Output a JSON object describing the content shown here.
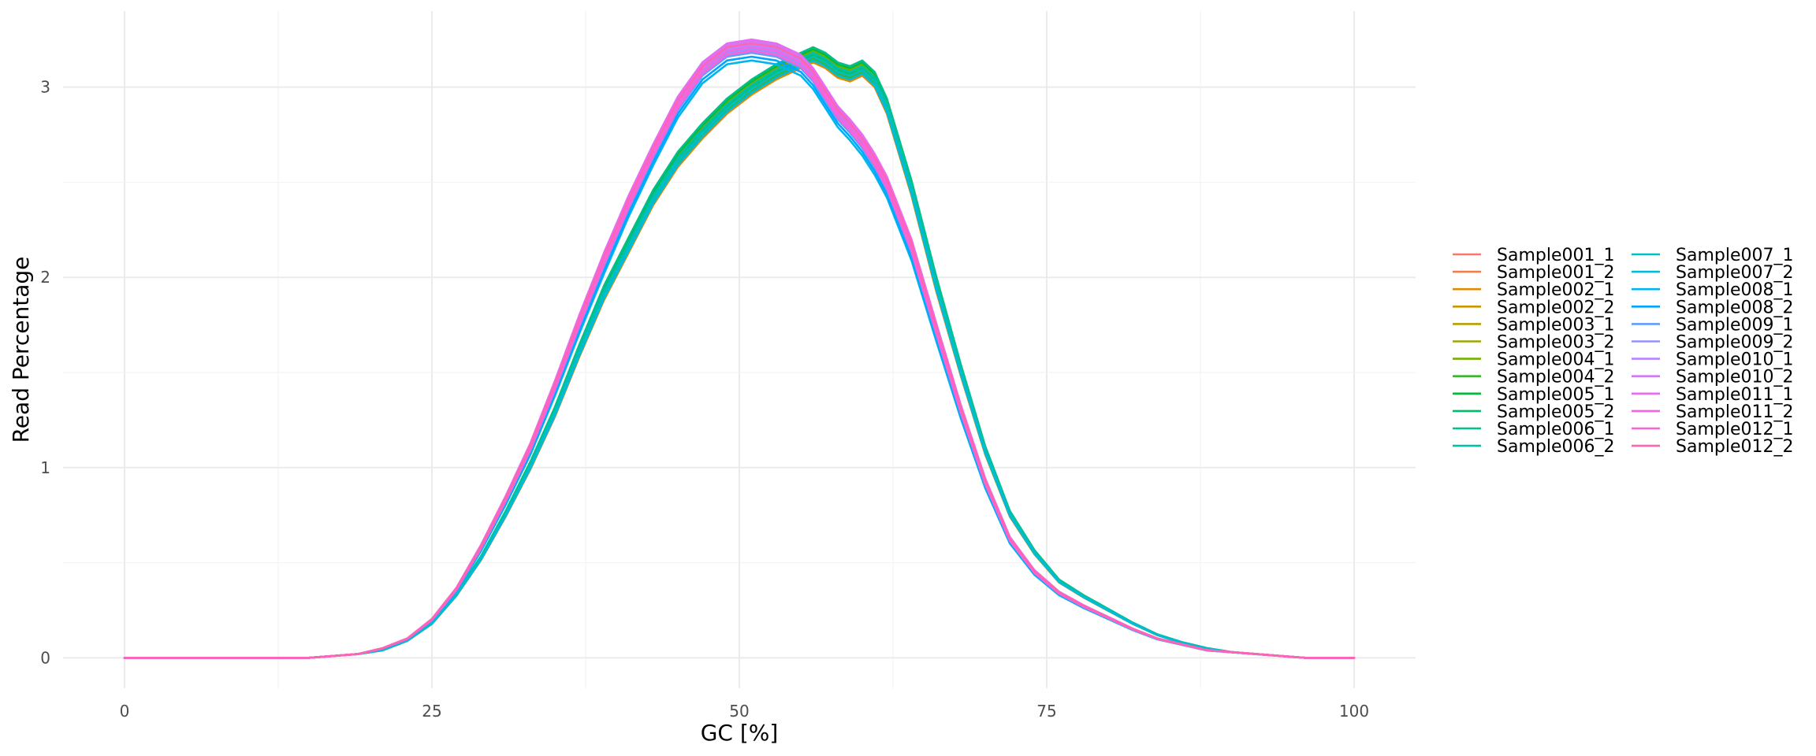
{
  "chart_data": {
    "type": "line",
    "title": "",
    "xlabel": "GC [%]",
    "ylabel": "Read Percentage",
    "xlim": [
      -5,
      105
    ],
    "ylim": [
      -0.16,
      3.4
    ],
    "xticks": [
      0,
      25,
      50,
      75,
      100
    ],
    "yticks": [
      0,
      1,
      2,
      3
    ],
    "grid": true,
    "legend_position": "right",
    "legend_columns": 2,
    "curve_groups": {
      "early": {
        "x": [
          0,
          5,
          10,
          15,
          17,
          19,
          21,
          23,
          25,
          27,
          29,
          31,
          33,
          35,
          37,
          39,
          41,
          43,
          45,
          47,
          49,
          51,
          53,
          55,
          56,
          57,
          58,
          59,
          60,
          61,
          62,
          64,
          66,
          68,
          70,
          72,
          74,
          76,
          78,
          80,
          82,
          84,
          86,
          88,
          90,
          92,
          94,
          96,
          98,
          100
        ],
        "y": [
          0.0,
          0.0,
          0.0,
          0.0,
          0.01,
          0.02,
          0.04,
          0.09,
          0.18,
          0.33,
          0.52,
          0.75,
          1.0,
          1.28,
          1.6,
          1.9,
          2.15,
          2.4,
          2.6,
          2.75,
          2.88,
          2.98,
          3.06,
          3.12,
          3.15,
          3.12,
          3.07,
          3.05,
          3.08,
          3.02,
          2.88,
          2.45,
          1.95,
          1.5,
          1.08,
          0.75,
          0.55,
          0.4,
          0.32,
          0.25,
          0.18,
          0.12,
          0.08,
          0.05,
          0.03,
          0.02,
          0.01,
          0.0,
          0.0,
          0.0
        ]
      },
      "late": {
        "x": [
          0,
          5,
          10,
          15,
          17,
          19,
          21,
          23,
          25,
          27,
          29,
          31,
          33,
          35,
          37,
          39,
          41,
          43,
          45,
          47,
          49,
          51,
          53,
          55,
          56,
          57,
          58,
          59,
          60,
          61,
          62,
          64,
          66,
          68,
          70,
          72,
          74,
          76,
          78,
          80,
          82,
          84,
          86,
          88,
          90,
          92,
          94,
          96,
          98,
          100
        ],
        "y": [
          0.0,
          0.0,
          0.0,
          0.0,
          0.01,
          0.02,
          0.05,
          0.1,
          0.2,
          0.36,
          0.58,
          0.83,
          1.1,
          1.42,
          1.76,
          2.08,
          2.38,
          2.65,
          2.9,
          3.08,
          3.18,
          3.2,
          3.18,
          3.12,
          3.05,
          2.95,
          2.85,
          2.78,
          2.7,
          2.6,
          2.48,
          2.15,
          1.72,
          1.3,
          0.92,
          0.62,
          0.45,
          0.34,
          0.27,
          0.21,
          0.15,
          0.1,
          0.07,
          0.04,
          0.03,
          0.02,
          0.01,
          0.0,
          0.0,
          0.0
        ]
      }
    },
    "series": [
      {
        "name": "Sample001_1",
        "color": "#F8766D",
        "group": "early",
        "dy": 0.0
      },
      {
        "name": "Sample001_2",
        "color": "#EF7F47",
        "group": "early",
        "dy": 0.02
      },
      {
        "name": "Sample002_1",
        "color": "#E18A00",
        "group": "early",
        "dy": -0.02
      },
      {
        "name": "Sample002_2",
        "color": "#CE9500",
        "group": "early",
        "dy": 0.01
      },
      {
        "name": "Sample003_1",
        "color": "#B79F00",
        "group": "early",
        "dy": 0.03
      },
      {
        "name": "Sample003_2",
        "color": "#9AA800",
        "group": "early",
        "dy": -0.01
      },
      {
        "name": "Sample004_1",
        "color": "#74B000",
        "group": "early",
        "dy": 0.04
      },
      {
        "name": "Sample004_2",
        "color": "#38B62C",
        "group": "early",
        "dy": 0.0
      },
      {
        "name": "Sample005_1",
        "color": "#00BA38",
        "group": "early",
        "dy": 0.05
      },
      {
        "name": "Sample005_2",
        "color": "#00BE6C",
        "group": "early",
        "dy": 0.02
      },
      {
        "name": "Sample006_1",
        "color": "#00C08B",
        "group": "early",
        "dy": 0.06
      },
      {
        "name": "Sample006_2",
        "color": "#00C1A7",
        "group": "early",
        "dy": 0.03
      },
      {
        "name": "Sample007_1",
        "color": "#00BFC4",
        "group": "early",
        "dy": 0.01
      },
      {
        "name": "Sample007_2",
        "color": "#00BBDA",
        "group": "early",
        "dy": -0.01
      },
      {
        "name": "Sample008_1",
        "color": "#00B4EF",
        "group": "late",
        "dy": -0.06
      },
      {
        "name": "Sample008_2",
        "color": "#00A5FF",
        "group": "late",
        "dy": -0.04
      },
      {
        "name": "Sample009_1",
        "color": "#619CFF",
        "group": "late",
        "dy": -0.02
      },
      {
        "name": "Sample009_2",
        "color": "#9590FF",
        "group": "late",
        "dy": 0.0
      },
      {
        "name": "Sample010_1",
        "color": "#B983FF",
        "group": "late",
        "dy": 0.02
      },
      {
        "name": "Sample010_2",
        "color": "#D078F5",
        "group": "late",
        "dy": 0.04
      },
      {
        "name": "Sample011_1",
        "color": "#E76BF3",
        "group": "late",
        "dy": 0.05
      },
      {
        "name": "Sample011_2",
        "color": "#F564E3",
        "group": "late",
        "dy": 0.01
      },
      {
        "name": "Sample012_1",
        "color": "#FC61D5",
        "group": "late",
        "dy": -0.01
      },
      {
        "name": "Sample012_2",
        "color": "#FF64B0",
        "group": "late",
        "dy": 0.03
      }
    ]
  }
}
